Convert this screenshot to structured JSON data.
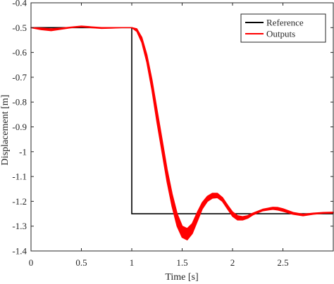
{
  "chart_data": {
    "type": "line",
    "title": "",
    "xlabel": "Time [s]",
    "ylabel": "Displacement [m]",
    "xlim": [
      0,
      3
    ],
    "ylim": [
      -1.4,
      -0.4
    ],
    "x_ticks": [
      0,
      0.5,
      1,
      1.5,
      2,
      2.5
    ],
    "x_tick_labels": [
      "0",
      "0.5",
      "1",
      "1.5",
      "2",
      "2.5"
    ],
    "y_ticks": [
      -0.4,
      -0.5,
      -0.6,
      -0.7,
      -0.8,
      -0.9,
      -1,
      -1.1,
      -1.2,
      -1.3,
      -1.4
    ],
    "y_tick_labels": [
      "-0.4",
      "-0.5",
      "-0.6",
      "-0.7",
      "-0.8",
      "-0.9",
      "-1",
      "-1.1",
      "-1.2",
      "-1.3",
      "-1.4"
    ],
    "grid": false,
    "legend_position": "top-right",
    "series": [
      {
        "name": "Reference",
        "color": "#000000",
        "style": "line",
        "x": [
          0,
          1,
          1,
          3
        ],
        "y": [
          -0.5,
          -0.5,
          -1.25,
          -1.25
        ]
      },
      {
        "name": "Outputs",
        "color": "#ff0000",
        "style": "band",
        "x": [
          0,
          0.1,
          0.2,
          0.3,
          0.4,
          0.5,
          0.6,
          0.7,
          0.8,
          0.9,
          1.0,
          1.05,
          1.1,
          1.15,
          1.2,
          1.25,
          1.3,
          1.35,
          1.4,
          1.45,
          1.5,
          1.55,
          1.6,
          1.65,
          1.7,
          1.75,
          1.8,
          1.85,
          1.9,
          1.95,
          2.0,
          2.05,
          2.1,
          2.15,
          2.2,
          2.3,
          2.4,
          2.45,
          2.5,
          2.6,
          2.7,
          2.8,
          2.9,
          3.0
        ],
        "y_lower": [
          -0.5,
          -0.508,
          -0.512,
          -0.506,
          -0.5,
          -0.497,
          -0.5,
          -0.503,
          -0.502,
          -0.5,
          -0.5,
          -0.515,
          -0.56,
          -0.64,
          -0.75,
          -0.88,
          -1.0,
          -1.12,
          -1.22,
          -1.3,
          -1.345,
          -1.355,
          -1.33,
          -1.28,
          -1.23,
          -1.2,
          -1.187,
          -1.185,
          -1.2,
          -1.23,
          -1.26,
          -1.275,
          -1.275,
          -1.268,
          -1.255,
          -1.238,
          -1.232,
          -1.235,
          -1.24,
          -1.252,
          -1.258,
          -1.252,
          -1.248,
          -1.247
        ],
        "y_upper": [
          -0.5,
          -0.502,
          -0.505,
          -0.502,
          -0.498,
          -0.494,
          -0.497,
          -0.5,
          -0.5,
          -0.5,
          -0.5,
          -0.505,
          -0.54,
          -0.61,
          -0.71,
          -0.83,
          -0.95,
          -1.07,
          -1.17,
          -1.25,
          -1.3,
          -1.31,
          -1.29,
          -1.245,
          -1.205,
          -1.18,
          -1.168,
          -1.168,
          -1.185,
          -1.215,
          -1.243,
          -1.258,
          -1.262,
          -1.258,
          -1.248,
          -1.232,
          -1.224,
          -1.225,
          -1.23,
          -1.245,
          -1.252,
          -1.248,
          -1.245,
          -1.244
        ]
      }
    ]
  }
}
